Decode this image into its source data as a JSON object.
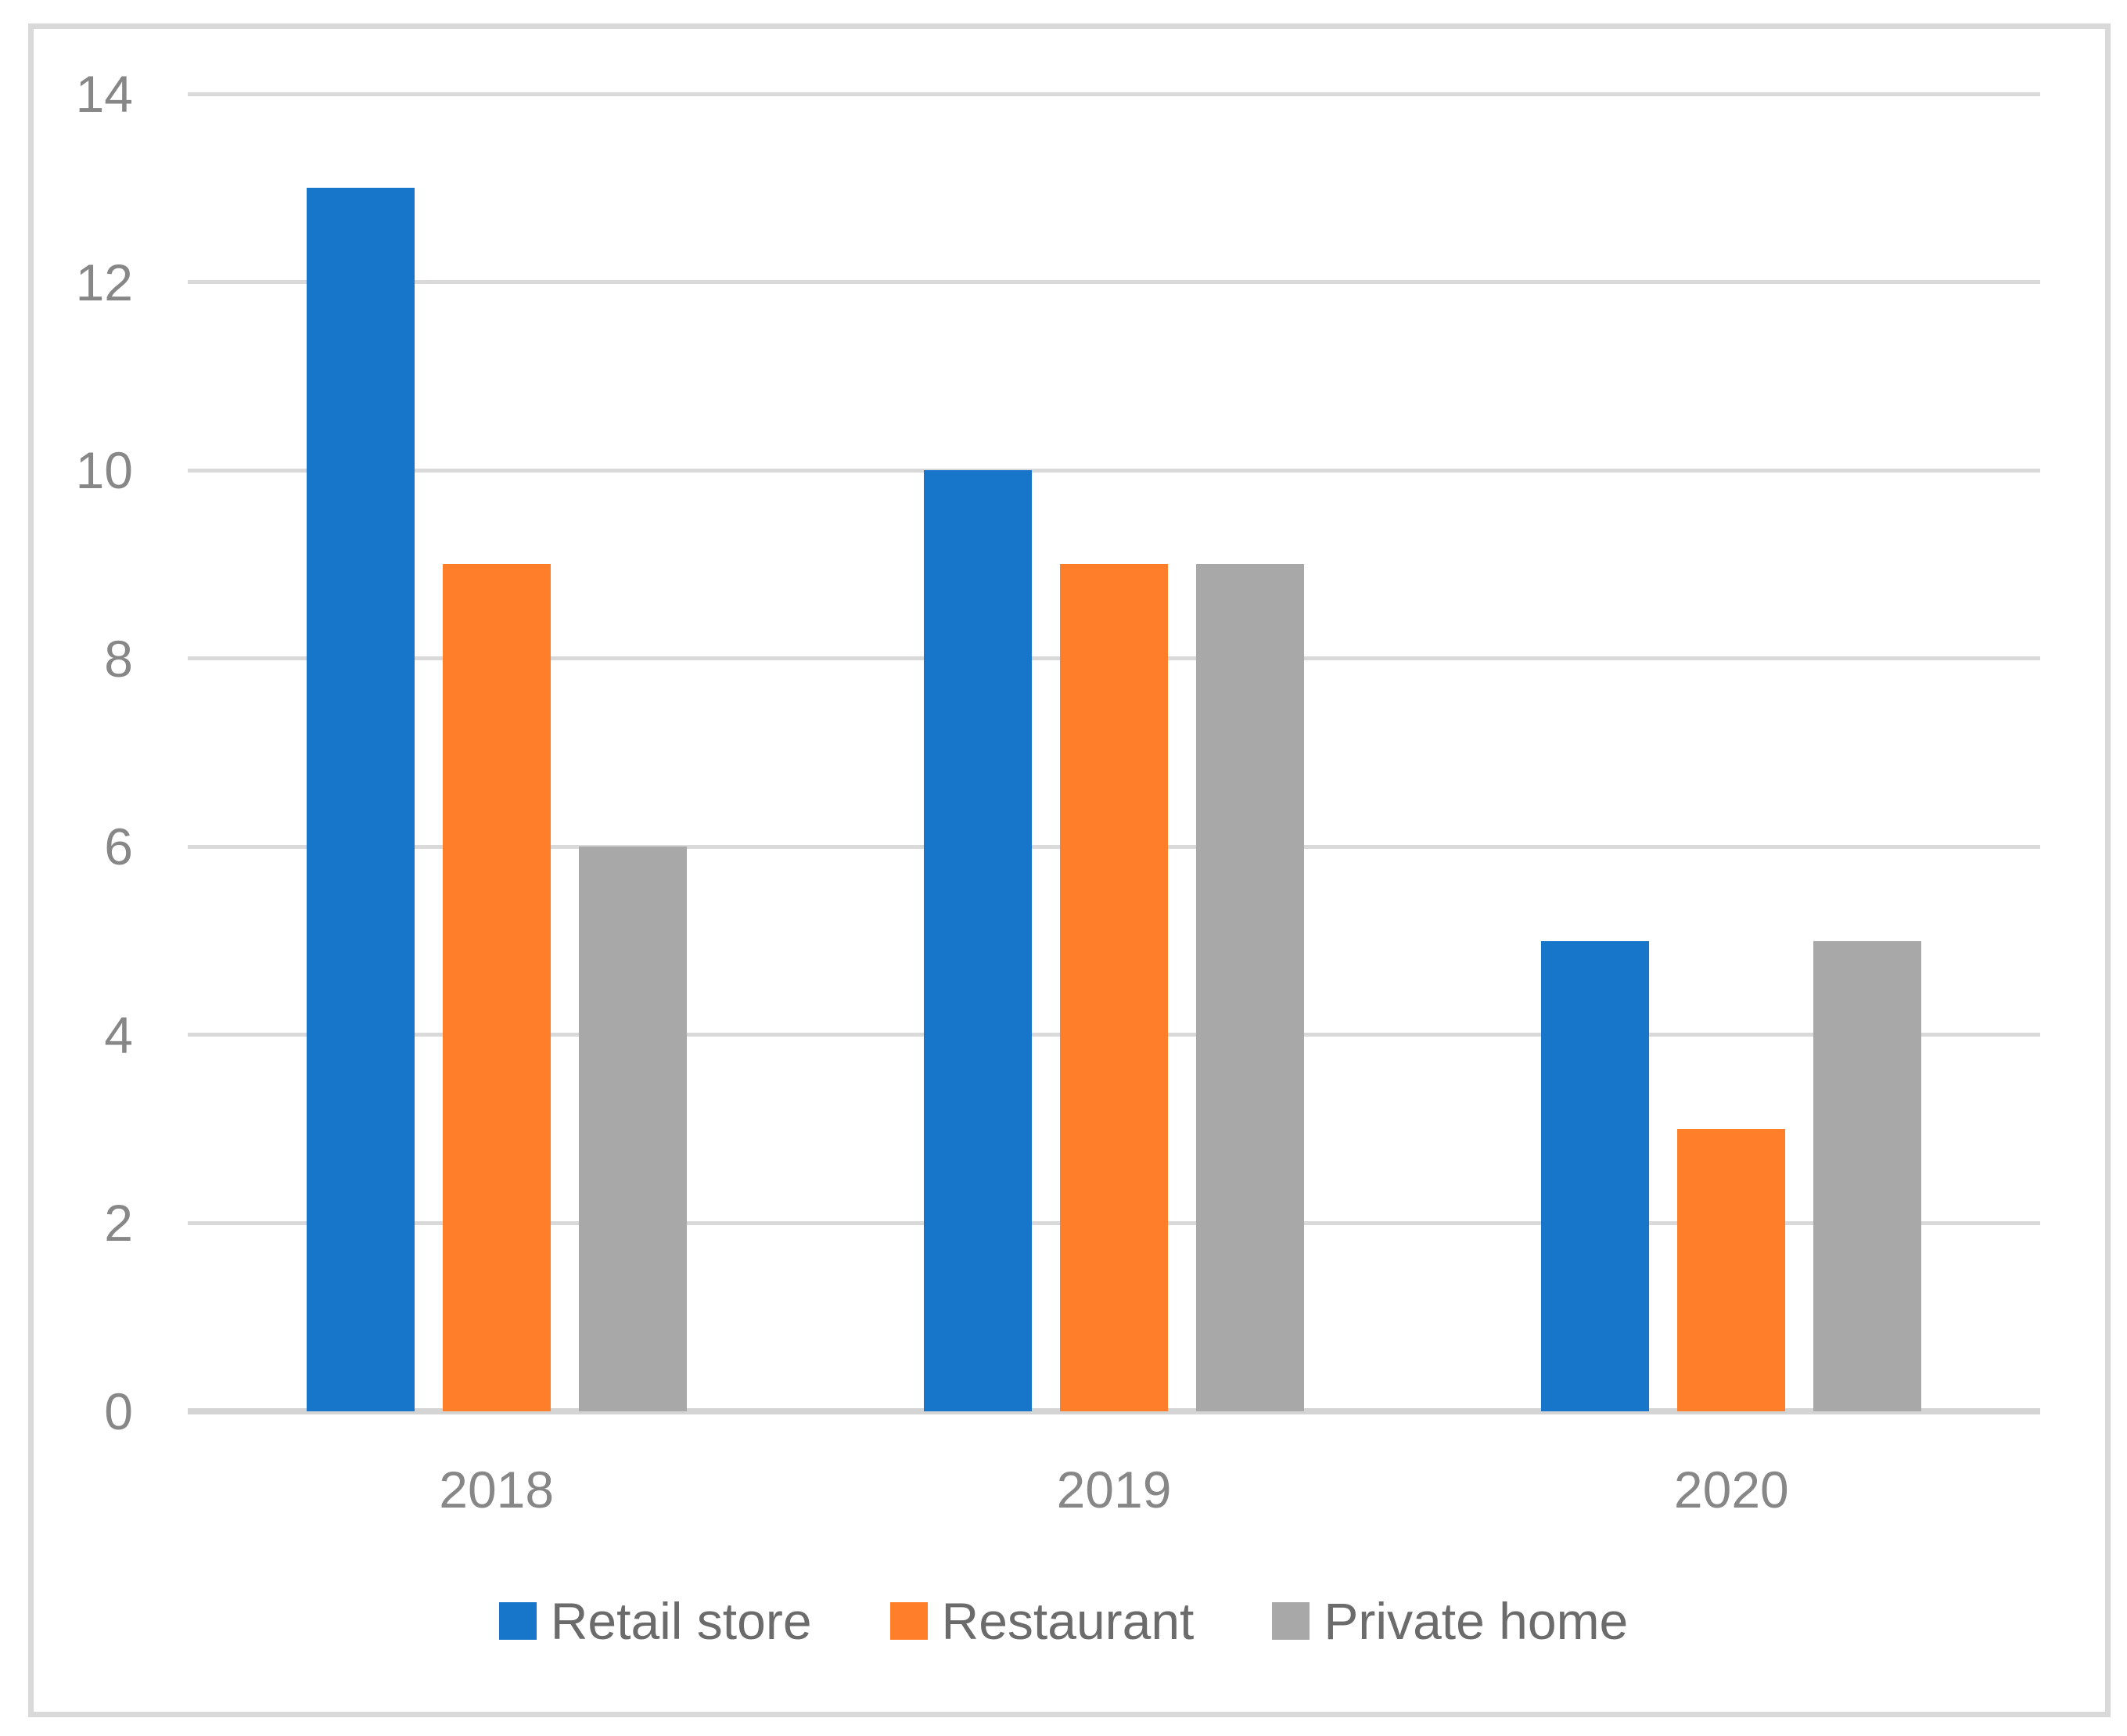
{
  "chart_data": {
    "type": "bar",
    "title": "",
    "xlabel": "",
    "ylabel": "",
    "categories": [
      "2018",
      "2019",
      "2020"
    ],
    "series": [
      {
        "name": "Retail store",
        "color": "#1775CA",
        "values": [
          13,
          10,
          5
        ]
      },
      {
        "name": "Restaurant",
        "color": "#FF7E29",
        "values": [
          9,
          9,
          3
        ]
      },
      {
        "name": "Private home",
        "color": "#A8A8A8",
        "values": [
          6,
          9,
          5
        ]
      }
    ],
    "ylim": [
      0,
      14
    ],
    "yticks": [
      0,
      2,
      4,
      6,
      8,
      10,
      12,
      14
    ],
    "grid": "horizontal",
    "legend_position": "bottom"
  },
  "styles": {
    "background": "#FFFFFF",
    "frame_border_color": "#D9D9D9",
    "gridline_color": "#D9D9D9",
    "axis_line_color": "#D4D4D4",
    "tick_label_color": "#878787",
    "category_label_color": "#878787",
    "legend_label_color": "#6B6B6B"
  }
}
